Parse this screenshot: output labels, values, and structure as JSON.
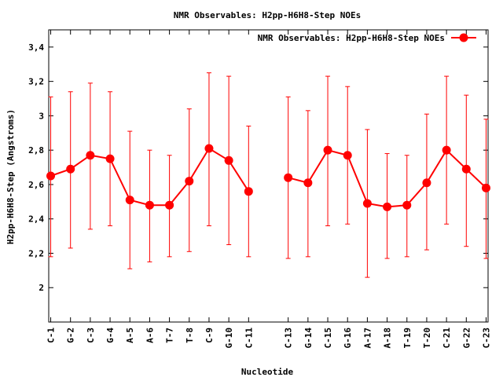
{
  "chart_data": {
    "type": "line",
    "title": "NMR Observables: H2pp-H6H8-Step NOEs",
    "xlabel": "Nucleotide",
    "ylabel": "H2pp-H6H8-Step (Angstroms)",
    "ylim": [
      1.8,
      3.5
    ],
    "yticks": [
      2,
      2.2,
      2.4,
      2.6,
      2.8,
      3,
      3.2,
      3.4
    ],
    "ytick_labels": [
      "2",
      "2,2",
      "2,4",
      "2,6",
      "2,8",
      "3",
      "3,2",
      "3,4"
    ],
    "grid": false,
    "legend_position": "top-right",
    "categories": [
      "C-1",
      "G-2",
      "C-3",
      "G-4",
      "A-5",
      "A-6",
      "T-7",
      "T-8",
      "C-9",
      "G-10",
      "C-11",
      "C-13",
      "G-14",
      "C-15",
      "G-16",
      "A-17",
      "A-18",
      "T-19",
      "T-20",
      "C-21",
      "G-22",
      "C-23"
    ],
    "x": [
      1,
      2,
      3,
      4,
      5,
      6,
      7,
      8,
      9,
      10,
      11,
      13,
      14,
      15,
      16,
      17,
      18,
      19,
      20,
      21,
      22,
      23
    ],
    "series": [
      {
        "name": "NMR Observables: H2pp-H6H8-Step NOEs",
        "color": "#ff0000",
        "segments": [
          [
            1,
            11
          ],
          [
            13,
            23
          ]
        ],
        "values": [
          2.65,
          2.69,
          2.77,
          2.75,
          2.51,
          2.48,
          2.48,
          2.62,
          2.81,
          2.74,
          2.56,
          2.64,
          2.61,
          2.8,
          2.77,
          2.49,
          2.47,
          2.48,
          2.61,
          2.8,
          2.69,
          2.58
        ],
        "error_low": [
          2.18,
          2.23,
          2.34,
          2.36,
          2.11,
          2.15,
          2.18,
          2.21,
          2.36,
          2.25,
          2.18,
          2.17,
          2.18,
          2.36,
          2.37,
          2.06,
          2.17,
          2.18,
          2.22,
          2.37,
          2.24,
          2.17
        ],
        "error_high": [
          3.11,
          3.14,
          3.19,
          3.14,
          2.91,
          2.8,
          2.77,
          3.04,
          3.25,
          3.23,
          2.94,
          3.11,
          3.03,
          3.23,
          3.17,
          2.92,
          2.78,
          2.77,
          3.01,
          3.23,
          3.12,
          2.98
        ]
      }
    ]
  }
}
